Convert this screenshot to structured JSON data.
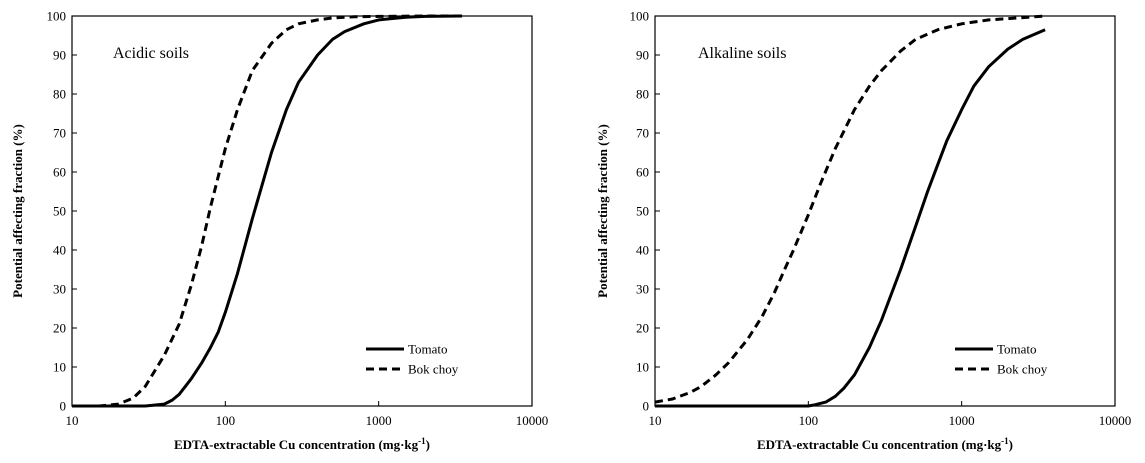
{
  "chart_data": [
    {
      "type": "line",
      "annotation": "Acidic soils",
      "xlabel": "EDTA-extractable  Cu concentration  (mg·kg",
      "xlabel_sup": "-1",
      "xlabel_end": ")",
      "ylabel": "Potential  affecting  fraction  (%)",
      "xscale": "log",
      "xlim": [
        10,
        10000
      ],
      "ylim": [
        0,
        100
      ],
      "xticks": [
        10,
        100,
        1000,
        10000
      ],
      "xtick_labels": [
        "10",
        "100",
        "1000",
        "10000"
      ],
      "yticks": [
        0,
        10,
        20,
        30,
        40,
        50,
        60,
        70,
        80,
        90,
        100
      ],
      "ytick_labels": [
        "0",
        "10",
        "20",
        "30",
        "40",
        "50",
        "60",
        "70",
        "80",
        "90",
        "100"
      ],
      "grid": false,
      "legend_position": "bottom-right",
      "series": [
        {
          "name": "Tomato",
          "style": "solid",
          "x": [
            10,
            30,
            40,
            45,
            50,
            60,
            70,
            80,
            90,
            100,
            120,
            150,
            200,
            250,
            300,
            400,
            500,
            600,
            800,
            1000,
            1500,
            2000,
            3500
          ],
          "y": [
            0,
            0,
            0.5,
            1.5,
            3,
            7,
            11,
            15,
            19,
            24,
            34,
            48,
            65,
            76,
            83,
            90,
            94,
            96,
            98,
            99,
            99.7,
            99.9,
            100
          ]
        },
        {
          "name": "Bok choy",
          "style": "dashed",
          "x": [
            10,
            15,
            20,
            25,
            30,
            40,
            50,
            60,
            70,
            80,
            100,
            120,
            150,
            200,
            250,
            300,
            400,
            500,
            700,
            1000,
            2000,
            3500
          ],
          "y": [
            0,
            0,
            0.5,
            2,
            5,
            13,
            21,
            31,
            41,
            51,
            66,
            76,
            86,
            93,
            96.5,
            98,
            99,
            99.5,
            99.8,
            99.9,
            100,
            100
          ]
        }
      ]
    },
    {
      "type": "line",
      "annotation": "Alkaline soils",
      "xlabel": "EDTA-extractable  Cu concentration  (mg·kg",
      "xlabel_sup": "-1",
      "xlabel_end": ")",
      "ylabel": "Potential  affecting  fraction  (%)",
      "xscale": "log",
      "xlim": [
        10,
        10000
      ],
      "ylim": [
        0,
        100
      ],
      "xticks": [
        10,
        100,
        1000,
        10000
      ],
      "xtick_labels": [
        "10",
        "100",
        "1000",
        "10000"
      ],
      "yticks": [
        0,
        10,
        20,
        30,
        40,
        50,
        60,
        70,
        80,
        90,
        100
      ],
      "ytick_labels": [
        "0",
        "10",
        "20",
        "30",
        "40",
        "50",
        "60",
        "70",
        "80",
        "90",
        "100"
      ],
      "grid": false,
      "legend_position": "bottom-right",
      "series": [
        {
          "name": "Tomato",
          "style": "solid",
          "x": [
            10,
            100,
            110,
            130,
            150,
            170,
            200,
            250,
            300,
            400,
            500,
            600,
            700,
            800,
            1000,
            1200,
            1500,
            2000,
            2500,
            3500
          ],
          "y": [
            0,
            0,
            0.3,
            1,
            2.5,
            4.5,
            8,
            15,
            22,
            35,
            46,
            55,
            62,
            68,
            76,
            82,
            87,
            91.5,
            94,
            96.5
          ]
        },
        {
          "name": "Bok choy",
          "style": "dashed",
          "x": [
            10,
            13,
            17,
            20,
            25,
            30,
            40,
            50,
            60,
            70,
            80,
            100,
            120,
            150,
            200,
            250,
            300,
            400,
            500,
            700,
            1000,
            1500,
            2500,
            3500
          ],
          "y": [
            1,
            1.8,
            3.5,
            5,
            8,
            11,
            17,
            23,
            29,
            35,
            40,
            49,
            57,
            66,
            76,
            82,
            86,
            91,
            94,
            96.5,
            98,
            99,
            99.6,
            100
          ]
        }
      ]
    }
  ]
}
